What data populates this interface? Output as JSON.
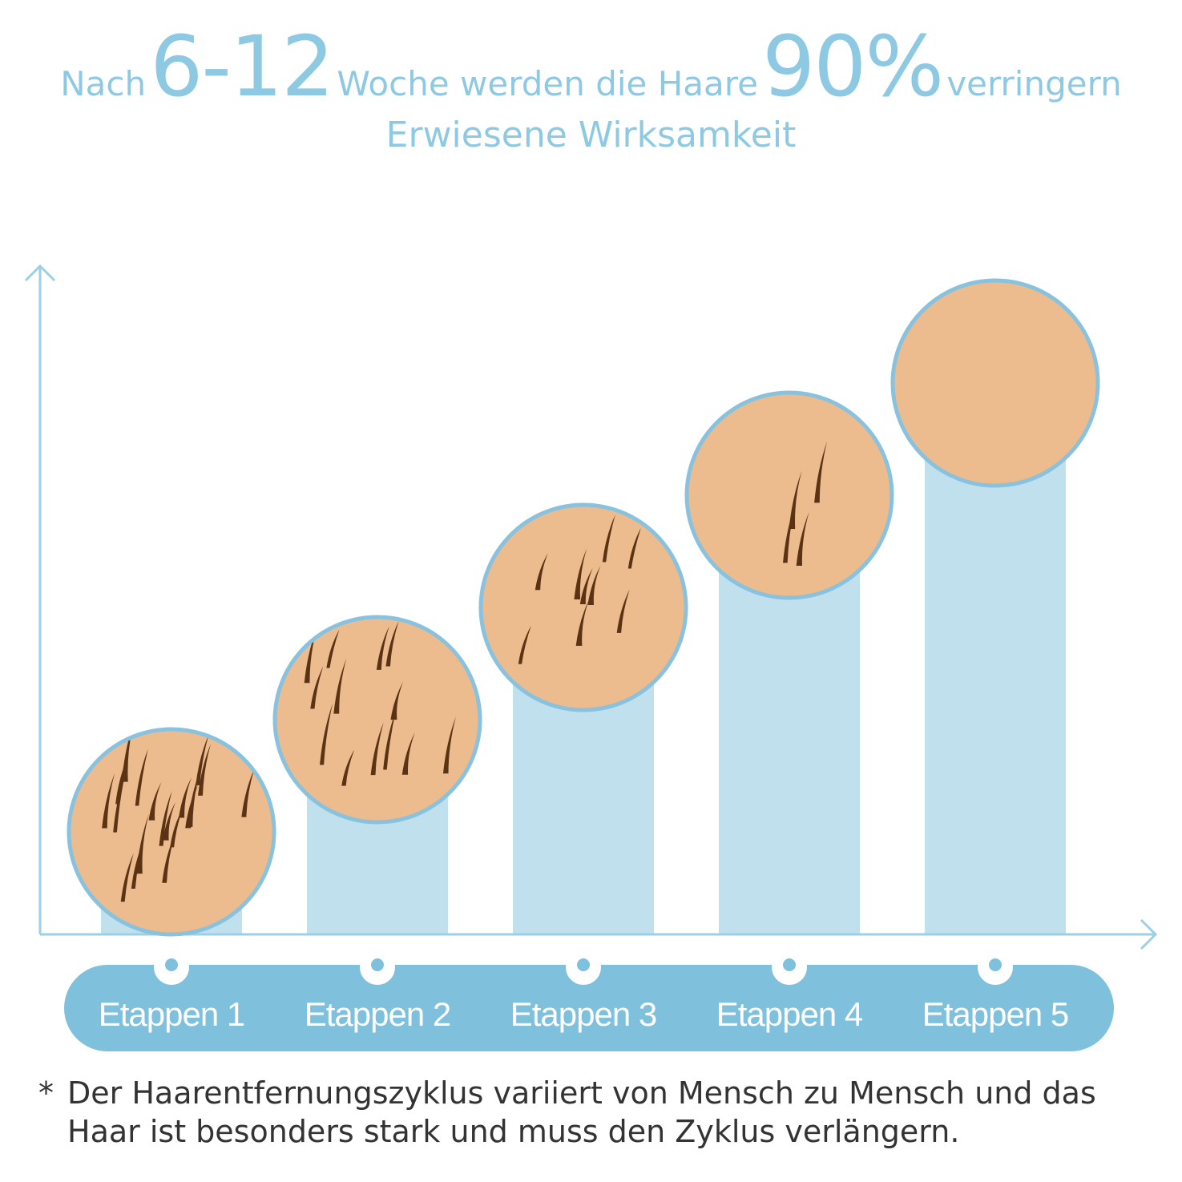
{
  "headline": {
    "part1": "Nach",
    "part2": "6-12",
    "part3": "Woche werden die Haare",
    "part4": "90%",
    "part5": "verringern"
  },
  "subtitle": "Erwiesene Wirksamkeit",
  "colors": {
    "accent": "#8ec9e4",
    "bar": "#c0e0ee",
    "pill": "#7fc0dd",
    "skin": "#ecbb8e",
    "hair": "#5a3214",
    "circle_border": "#88c2de",
    "axis": "#9cd0e6"
  },
  "chart_data": {
    "type": "bar",
    "categories": [
      "Etappen 1",
      "Etappen 2",
      "Etappen 3",
      "Etappen 4",
      "Etappen 5"
    ],
    "values": [
      1,
      2,
      3,
      4,
      5
    ],
    "hair_counts": [
      19,
      13,
      9,
      4,
      0
    ],
    "icons": [
      "skin-hair-icon",
      "skin-hair-icon",
      "skin-hair-icon",
      "skin-hair-icon",
      "skin-bare-icon"
    ],
    "title": "",
    "xlabel": "",
    "ylabel": "",
    "ylim": [
      0,
      5
    ],
    "grid": false,
    "legend": "none"
  },
  "footnote": {
    "star": "*",
    "text": "Der Haarentfernungszyklus variiert von Mensch zu Mensch und das Haar ist besonders stark und muss den Zyklus verlängern."
  }
}
